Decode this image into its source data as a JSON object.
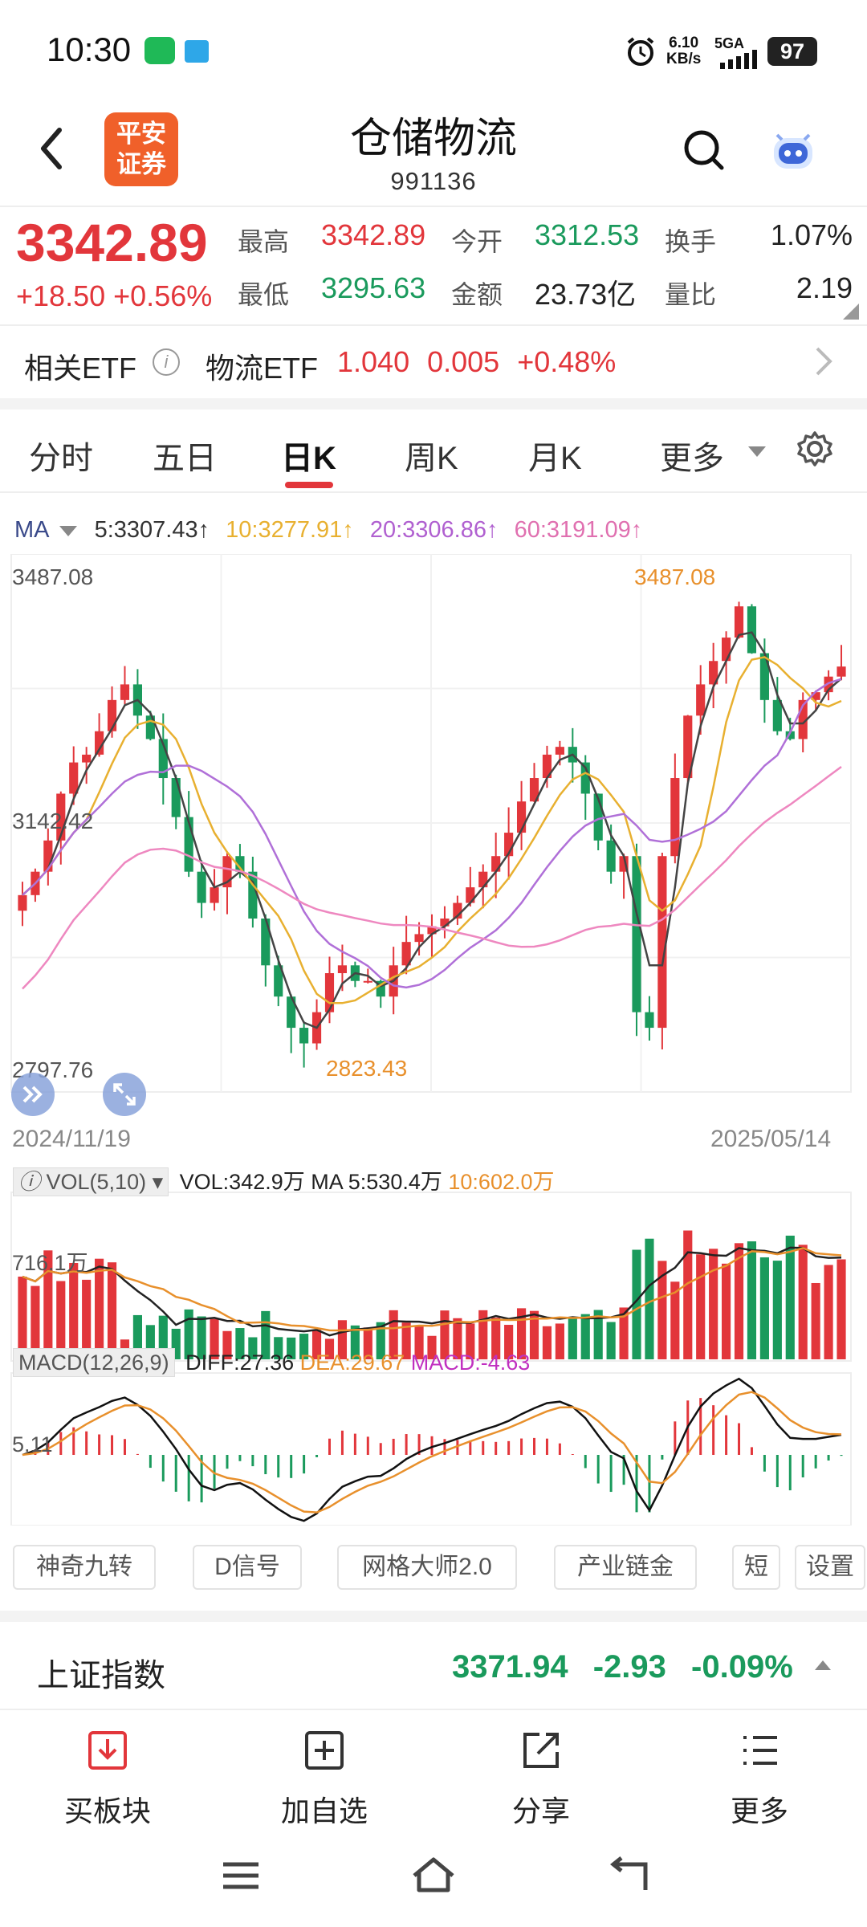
{
  "status": {
    "time": "10:30",
    "speed_value": "6.10",
    "speed_unit": "KB/s",
    "network": "5GA",
    "battery": "97"
  },
  "header": {
    "logo_line1": "平安",
    "logo_line2": "证券",
    "title": "仓储物流",
    "code": "991136"
  },
  "quote": {
    "price": "3342.89",
    "change": "+18.50",
    "change_pct": "+0.56%",
    "high_label": "最高",
    "high": "3342.89",
    "open_label": "今开",
    "open": "3312.53",
    "turnover_label": "换手",
    "turnover": "1.07%",
    "low_label": "最低",
    "low": "3295.63",
    "amount_label": "金额",
    "amount": "23.73亿",
    "volratio_label": "量比",
    "volratio": "2.19"
  },
  "etf": {
    "label": "相关ETF",
    "name": "物流ETF",
    "price": "1.040",
    "change": "0.005",
    "pct": "+0.48%"
  },
  "tabs": [
    {
      "label": "分时"
    },
    {
      "label": "五日"
    },
    {
      "label": "日K"
    },
    {
      "label": "周K"
    },
    {
      "label": "月K"
    },
    {
      "label": "更多"
    }
  ],
  "ma_legend": {
    "ma": "MA",
    "ma5": "5:3307.43↑",
    "ma10": "10:3277.91↑",
    "ma20": "20:3306.86↑",
    "ma60": "60:3191.09↑"
  },
  "chart": {
    "y_top": "3487.08",
    "y_mid": "3142.42",
    "y_bottom": "2797.76",
    "high_mark": "3487.08",
    "low_mark": "2823.43",
    "date_start": "2024/11/19",
    "date_end": "2025/05/14"
  },
  "volume": {
    "tag": "VOL(5,10)",
    "vol": "VOL:342.9万",
    "ma5": "MA 5:530.4万",
    "ma10": "10:602.0万",
    "axis": "716.1万"
  },
  "macd": {
    "tag": "MACD(12,26,9)",
    "diff": "DIFF:27.36",
    "dea": "DEA:29.67",
    "macd": "MACD:-4.63",
    "axis": "5.11"
  },
  "tools": [
    {
      "label": "神奇九转"
    },
    {
      "label": "D信号"
    },
    {
      "label": "网格大师2.0"
    },
    {
      "label": "产业链金"
    },
    {
      "label": "短"
    },
    {
      "label": "设置"
    }
  ],
  "index": {
    "name": "上证指数",
    "value": "3371.94",
    "change": "-2.93",
    "pct": "-0.09%"
  },
  "actions": [
    {
      "label": "买板块"
    },
    {
      "label": "加自选"
    },
    {
      "label": "分享"
    },
    {
      "label": "更多"
    }
  ],
  "colors": {
    "up": "#e2363b",
    "down": "#1a9a5c",
    "ma5": "#444444",
    "ma10": "#e8b030",
    "ma20": "#b070d8",
    "ma60": "#ee88c0",
    "accent": "#f0602a"
  },
  "chart_data": {
    "type": "candlestick",
    "ylim": [
      2797.76,
      3487.08
    ],
    "x_range": [
      "2024/11/19",
      "2025/05/14"
    ],
    "annotations": [
      {
        "label": "3487.08",
        "kind": "high"
      },
      {
        "label": "2823.43",
        "kind": "low"
      }
    ],
    "series": [
      {
        "name": "MA5",
        "last": 3307.43
      },
      {
        "name": "MA10",
        "last": 3277.91
      },
      {
        "name": "MA20",
        "last": 3306.86
      },
      {
        "name": "MA60",
        "last": 3191.09
      }
    ],
    "close_path": [
      3050,
      3080,
      3120,
      3180,
      3220,
      3230,
      3260,
      3300,
      3320,
      3280,
      3250,
      3200,
      3150,
      3080,
      3040,
      3060,
      3100,
      3080,
      3020,
      2960,
      2920,
      2880,
      2860,
      2900,
      2950,
      2960,
      2940,
      2940,
      2920,
      2960,
      2990,
      3000,
      3010,
      3020,
      3040,
      3060,
      3080,
      3100,
      3130,
      3170,
      3200,
      3230,
      3240,
      3220,
      3180,
      3120,
      3080,
      3100,
      2900,
      2880,
      3100,
      3200,
      3280,
      3320,
      3350,
      3380,
      3420,
      3360,
      3300,
      3260,
      3250,
      3300,
      3310,
      3330,
      3342.89
    ],
    "volume_ylim": [
      0,
      716.1
    ],
    "volume_last": 342.9,
    "macd_last": {
      "diff": 27.36,
      "dea": 29.67,
      "macd": -4.63
    }
  }
}
